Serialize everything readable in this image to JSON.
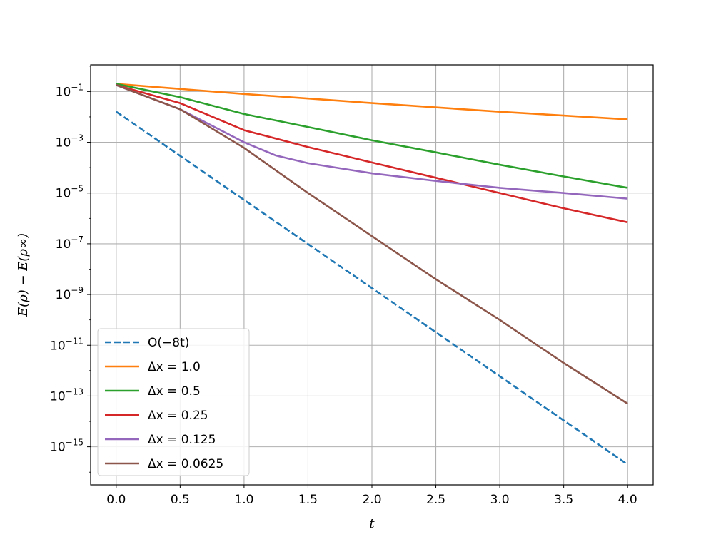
{
  "chart_data": {
    "type": "line",
    "xlabel": "t",
    "ylabel": "E(ρ) − E(ρ∞)",
    "yscale": "log",
    "xlim": [
      -0.2,
      4.2
    ],
    "ylim_log10": [
      -16.5,
      0.05
    ],
    "grid": true,
    "legend_position": "lower-left",
    "x_ticks": [
      "0.0",
      "0.5",
      "1.0",
      "1.5",
      "2.0",
      "2.5",
      "3.0",
      "3.5",
      "4.0"
    ],
    "x_tick_values": [
      0,
      0.5,
      1,
      1.5,
      2,
      2.5,
      3,
      3.5,
      4
    ],
    "y_ticks": [
      {
        "base": "10",
        "exp": "−1",
        "value": -1
      },
      {
        "base": "10",
        "exp": "−3",
        "value": -3
      },
      {
        "base": "10",
        "exp": "−5",
        "value": -5
      },
      {
        "base": "10",
        "exp": "−7",
        "value": -7
      },
      {
        "base": "10",
        "exp": "−9",
        "value": -9
      },
      {
        "base": "10",
        "exp": "−11",
        "value": -11
      },
      {
        "base": "10",
        "exp": "−13",
        "value": -13
      },
      {
        "base": "10",
        "exp": "−15",
        "value": -15
      }
    ],
    "series": [
      {
        "name": "O(−8t)",
        "color": "#1f77b4",
        "dash": true,
        "x": [
          0,
          4
        ],
        "y": [
          "1.6e-2",
          "2e-16"
        ]
      },
      {
        "name": "Δx = 1.0",
        "color": "#ff7f0e",
        "dash": false,
        "x": [
          0,
          1,
          2,
          3,
          4
        ],
        "y": [
          "2e-1",
          "8e-2",
          "3.5e-2",
          "1.6e-2",
          "8e-3"
        ]
      },
      {
        "name": "Δx = 0.5",
        "color": "#2ca02c",
        "dash": false,
        "x": [
          0,
          0.5,
          1,
          1.5,
          2,
          2.5,
          3,
          3.5,
          4
        ],
        "y": [
          "2e-1",
          "6e-2",
          "1.3e-2",
          "4e-3",
          "1.2e-3",
          "4e-4",
          "1.3e-4",
          "4.5e-5",
          "1.6e-5"
        ]
      },
      {
        "name": "Δx = 0.25",
        "color": "#d62728",
        "dash": false,
        "x": [
          0,
          0.5,
          1,
          1.5,
          2,
          2.5,
          3,
          3.5,
          4
        ],
        "y": [
          "1.8e-1",
          "3.5e-2",
          "3e-3",
          "6.5e-4",
          "1.6e-4",
          "4e-5",
          "1e-5",
          "2.5e-6",
          "7e-7"
        ]
      },
      {
        "name": "Δx = 0.125",
        "color": "#9467bd",
        "dash": false,
        "x": [
          0,
          0.5,
          1,
          1.25,
          1.5,
          2,
          2.5,
          3,
          3.5,
          4
        ],
        "y": [
          "1.8e-1",
          "2e-2",
          "1e-3",
          "3e-4",
          "1.5e-4",
          "6e-5",
          "3e-5",
          "1.6e-5",
          "1e-5",
          "6e-6"
        ]
      },
      {
        "name": "Δx = 0.0625",
        "color": "#8c564b",
        "dash": false,
        "x": [
          0,
          0.5,
          1,
          1.5,
          2,
          2.5,
          3,
          3.5,
          4
        ],
        "y": [
          "1.8e-1",
          "2e-2",
          "6e-4",
          "1e-5",
          "2e-7",
          "4e-9",
          "1e-10",
          "2e-12",
          "5e-14"
        ]
      }
    ]
  }
}
